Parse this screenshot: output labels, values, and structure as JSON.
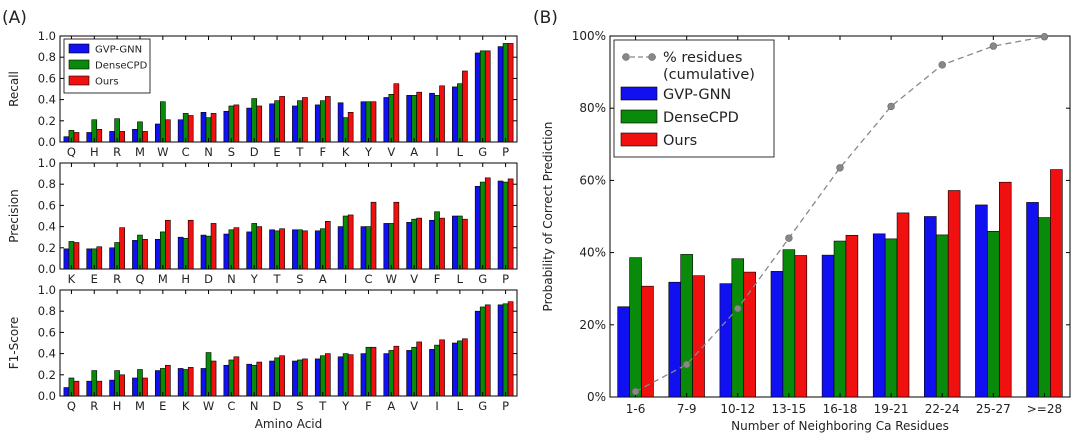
{
  "figure": {
    "panel_a_label": "(A)",
    "panel_b_label": "(B)"
  },
  "colors": {
    "gvp": "#1010f0",
    "dense": "#0a8a0a",
    "ours": "#f01010",
    "cumulative": "#888888"
  },
  "chart_data": [
    {
      "type": "bar",
      "name": "recall",
      "ylabel": "Recall",
      "ylim": [
        0,
        1.0
      ],
      "yticks": [
        "0.0",
        "0.2",
        "0.4",
        "0.6",
        "0.8",
        "1.0"
      ],
      "categories": [
        "Q",
        "H",
        "R",
        "M",
        "W",
        "C",
        "N",
        "S",
        "D",
        "E",
        "T",
        "F",
        "K",
        "Y",
        "V",
        "A",
        "I",
        "L",
        "G",
        "P"
      ],
      "legend": [
        "GVP-GNN",
        "DenseCPD",
        "Ours"
      ],
      "legend_position": "top-left",
      "series": [
        {
          "name": "GVP-GNN",
          "values": [
            0.05,
            0.09,
            0.1,
            0.12,
            0.17,
            0.21,
            0.28,
            0.29,
            0.32,
            0.36,
            0.34,
            0.35,
            0.37,
            0.38,
            0.42,
            0.44,
            0.46,
            0.52,
            0.84,
            0.9
          ]
        },
        {
          "name": "DenseCPD",
          "values": [
            0.11,
            0.21,
            0.22,
            0.19,
            0.38,
            0.27,
            0.23,
            0.34,
            0.41,
            0.39,
            0.39,
            0.39,
            0.23,
            0.38,
            0.45,
            0.44,
            0.44,
            0.55,
            0.86,
            0.93
          ]
        },
        {
          "name": "Ours",
          "values": [
            0.09,
            0.12,
            0.1,
            0.1,
            0.21,
            0.25,
            0.27,
            0.35,
            0.34,
            0.43,
            0.42,
            0.43,
            0.28,
            0.38,
            0.55,
            0.47,
            0.53,
            0.67,
            0.86,
            0.93
          ]
        }
      ]
    },
    {
      "type": "bar",
      "name": "precision",
      "ylabel": "Precision",
      "ylim": [
        0,
        1.0
      ],
      "yticks": [
        "0.0",
        "0.2",
        "0.4",
        "0.6",
        "0.8",
        "1.0"
      ],
      "categories": [
        "K",
        "E",
        "R",
        "Q",
        "M",
        "H",
        "D",
        "N",
        "Y",
        "T",
        "S",
        "A",
        "I",
        "C",
        "W",
        "V",
        "F",
        "L",
        "G",
        "P"
      ],
      "series": [
        {
          "name": "GVP-GNN",
          "values": [
            0.19,
            0.19,
            0.2,
            0.27,
            0.28,
            0.3,
            0.32,
            0.33,
            0.35,
            0.37,
            0.37,
            0.36,
            0.4,
            0.4,
            0.43,
            0.44,
            0.46,
            0.5,
            0.78,
            0.83
          ]
        },
        {
          "name": "DenseCPD",
          "values": [
            0.26,
            0.19,
            0.25,
            0.32,
            0.35,
            0.29,
            0.31,
            0.37,
            0.43,
            0.36,
            0.37,
            0.38,
            0.5,
            0.4,
            0.43,
            0.47,
            0.54,
            0.5,
            0.82,
            0.82
          ]
        },
        {
          "name": "Ours",
          "values": [
            0.25,
            0.21,
            0.39,
            0.28,
            0.46,
            0.46,
            0.43,
            0.39,
            0.4,
            0.38,
            0.36,
            0.45,
            0.51,
            0.63,
            0.63,
            0.48,
            0.48,
            0.47,
            0.86,
            0.85
          ]
        }
      ]
    },
    {
      "type": "bar",
      "name": "f1",
      "ylabel": "F1-Score",
      "xlabel": "Amino Acid",
      "ylim": [
        0,
        1.0
      ],
      "yticks": [
        "0.0",
        "0.2",
        "0.4",
        "0.6",
        "0.8",
        "1.0"
      ],
      "categories": [
        "Q",
        "R",
        "H",
        "M",
        "E",
        "K",
        "W",
        "C",
        "N",
        "D",
        "S",
        "T",
        "Y",
        "F",
        "A",
        "V",
        "I",
        "L",
        "G",
        "P"
      ],
      "series": [
        {
          "name": "GVP-GNN",
          "values": [
            0.08,
            0.14,
            0.15,
            0.17,
            0.24,
            0.26,
            0.26,
            0.29,
            0.3,
            0.33,
            0.33,
            0.35,
            0.37,
            0.4,
            0.4,
            0.43,
            0.44,
            0.5,
            0.8,
            0.86
          ]
        },
        {
          "name": "DenseCPD",
          "values": [
            0.17,
            0.24,
            0.24,
            0.25,
            0.26,
            0.25,
            0.41,
            0.34,
            0.29,
            0.36,
            0.34,
            0.38,
            0.4,
            0.46,
            0.43,
            0.46,
            0.48,
            0.52,
            0.84,
            0.87
          ]
        },
        {
          "name": "Ours",
          "values": [
            0.14,
            0.14,
            0.2,
            0.17,
            0.29,
            0.27,
            0.33,
            0.37,
            0.32,
            0.38,
            0.35,
            0.4,
            0.39,
            0.46,
            0.47,
            0.51,
            0.53,
            0.54,
            0.86,
            0.89
          ]
        }
      ]
    },
    {
      "type": "bar",
      "name": "neighbors",
      "ylabel": "Probability of Correct Prediction",
      "xlabel": "Number of Neighboring Ca Residues",
      "ylim": [
        0,
        100
      ],
      "yticks": [
        "0%",
        "20%",
        "40%",
        "60%",
        "80%",
        "100%"
      ],
      "categories": [
        "1-6",
        "7-9",
        "10-12",
        "13-15",
        "16-18",
        "19-21",
        "22-24",
        "25-27",
        ">=28"
      ],
      "legend": [
        "% residues\n(cumulative)",
        "GVP-GNN",
        "DenseCPD",
        "Ours"
      ],
      "legend_position": "top-left",
      "series": [
        {
          "name": "GVP-GNN",
          "values": [
            25.0,
            31.8,
            31.4,
            34.8,
            39.3,
            45.2,
            50.0,
            53.2,
            53.9
          ]
        },
        {
          "name": "DenseCPD",
          "values": [
            38.6,
            39.5,
            38.3,
            40.8,
            43.2,
            43.8,
            44.9,
            45.9,
            49.7
          ]
        },
        {
          "name": "Ours",
          "values": [
            30.7,
            33.6,
            34.6,
            39.2,
            44.8,
            51.0,
            57.2,
            59.5,
            63.0
          ]
        }
      ],
      "cumulative": {
        "name": "% residues (cumulative)",
        "values": [
          1.5,
          9.0,
          24.5,
          44.0,
          63.5,
          80.5,
          92.0,
          97.2,
          99.8
        ]
      }
    }
  ]
}
